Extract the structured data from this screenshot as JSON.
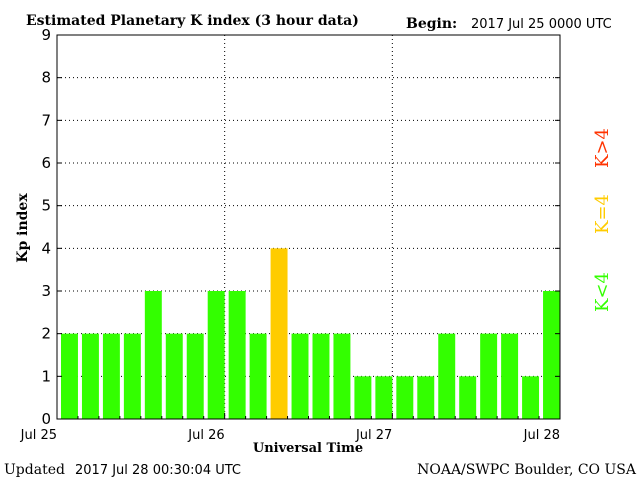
{
  "header": {
    "title": "Estimated Planetary K index (3 hour data)",
    "begin_label": "Begin:",
    "begin_value": "2017 Jul 25 0000 UTC"
  },
  "footer": {
    "updated_label": "Updated",
    "updated_value": "2017 Jul 28 00:30:04 UTC",
    "source": "NOAA/SWPC Boulder, CO USA"
  },
  "legend": {
    "high": {
      "label": "K>4",
      "color": "#ff3300"
    },
    "equal": {
      "label": "K=4",
      "color": "#ffcc00"
    },
    "low": {
      "label": "K<4",
      "color": "#33ff00"
    }
  },
  "chart_data": {
    "type": "bar",
    "title": "Estimated Planetary K index (3 hour data)",
    "xlabel": "Universal Time",
    "ylabel": "Kp index",
    "ylim": [
      0,
      9
    ],
    "yticks": [
      "0",
      "1",
      "2",
      "3",
      "4",
      "5",
      "6",
      "7",
      "8",
      "9"
    ],
    "xticks": [
      "Jul 25",
      "Jul 26",
      "Jul 27",
      "Jul 28"
    ],
    "categories": [
      "Jul 25 00",
      "Jul 25 03",
      "Jul 25 06",
      "Jul 25 09",
      "Jul 25 12",
      "Jul 25 15",
      "Jul 25 18",
      "Jul 25 21",
      "Jul 26 00",
      "Jul 26 03",
      "Jul 26 06",
      "Jul 26 09",
      "Jul 26 12",
      "Jul 26 15",
      "Jul 26 18",
      "Jul 26 21",
      "Jul 27 00",
      "Jul 27 03",
      "Jul 27 06",
      "Jul 27 09",
      "Jul 27 12",
      "Jul 27 15",
      "Jul 27 18",
      "Jul 27 21"
    ],
    "values": [
      2,
      2,
      2,
      2,
      3,
      2,
      2,
      3,
      3,
      2,
      4,
      2,
      2,
      2,
      1,
      1,
      1,
      1,
      2,
      1,
      2,
      2,
      1,
      3
    ],
    "grid": true
  }
}
